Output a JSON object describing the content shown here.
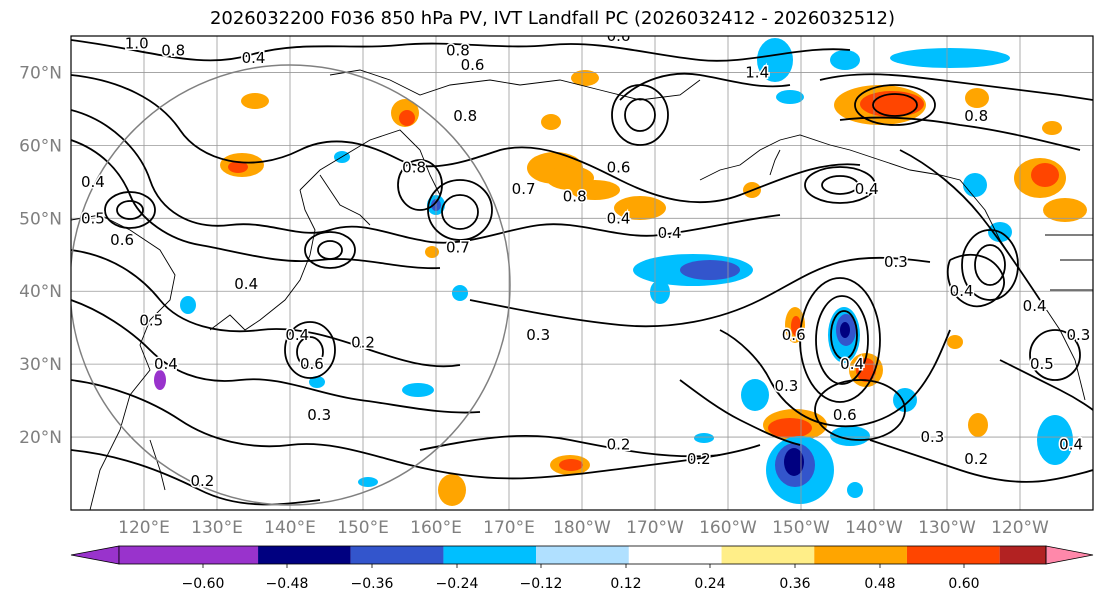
{
  "title": "2026032200 F036 850 hPa PV, IVT Landfall PC (2026032412 - 2026032512)",
  "lat_labels": [
    {
      "lat": 70,
      "label": "70°N"
    },
    {
      "lat": 60,
      "label": "60°N"
    },
    {
      "lat": 50,
      "label": "50°N"
    },
    {
      "lat": 40,
      "label": "40°N"
    },
    {
      "lat": 30,
      "label": "30°N"
    },
    {
      "lat": 20,
      "label": "20°N"
    }
  ],
  "lon_labels": [
    {
      "lon": 120,
      "label": "120°E"
    },
    {
      "lon": 130,
      "label": "130°E"
    },
    {
      "lon": 140,
      "label": "140°E"
    },
    {
      "lon": 150,
      "label": "150°E"
    },
    {
      "lon": 160,
      "label": "160°E"
    },
    {
      "lon": 170,
      "label": "170°E"
    },
    {
      "lon": 180,
      "label": "180°W"
    },
    {
      "lon": 190,
      "label": "170°W"
    },
    {
      "lon": 200,
      "label": "160°W"
    },
    {
      "lon": 210,
      "label": "150°W"
    },
    {
      "lon": 220,
      "label": "140°W"
    },
    {
      "lon": 230,
      "label": "130°W"
    },
    {
      "lon": 240,
      "label": "120°W"
    }
  ],
  "map_extent": {
    "lon_min": 110,
    "lon_max": 250,
    "lat_min": 10,
    "lat_max": 75
  },
  "colorbar": {
    "colors": [
      "#9933cc",
      "#000080",
      "#3355cc",
      "#00bfff",
      "#b0e0ff",
      "#ffffff",
      "#ffee88",
      "#ffa500",
      "#ff4500",
      "#b22222",
      "#ff88aa"
    ],
    "labels": [
      "−0.60",
      "−0.48",
      "−0.36",
      "−0.24",
      "−0.12",
      "0.12",
      "0.24",
      "0.36",
      "0.48",
      "0.60"
    ]
  },
  "contour_labels": [
    {
      "text": "1.0",
      "lon": 119,
      "lat": 74
    },
    {
      "text": "0.8",
      "lon": 124,
      "lat": 73
    },
    {
      "text": "0.4",
      "lon": 135,
      "lat": 72
    },
    {
      "text": "0.8",
      "lon": 163,
      "lat": 73
    },
    {
      "text": "0.6",
      "lon": 165,
      "lat": 71
    },
    {
      "text": "0.6",
      "lon": 185,
      "lat": 75
    },
    {
      "text": "1.4",
      "lon": 204,
      "lat": 70
    },
    {
      "text": "0.8",
      "lon": 164,
      "lat": 64
    },
    {
      "text": "0.8",
      "lon": 157,
      "lat": 57
    },
    {
      "text": "0.7",
      "lon": 172,
      "lat": 54
    },
    {
      "text": "0.8",
      "lon": 179,
      "lat": 53
    },
    {
      "text": "0.6",
      "lon": 185,
      "lat": 57
    },
    {
      "text": "0.4",
      "lon": 192,
      "lat": 48
    },
    {
      "text": "0.4",
      "lon": 185,
      "lat": 50
    },
    {
      "text": "0.7",
      "lon": 163,
      "lat": 46
    },
    {
      "text": "0.8",
      "lon": 234,
      "lat": 64
    },
    {
      "text": "0.4",
      "lon": 219,
      "lat": 54
    },
    {
      "text": "0.4",
      "lon": 113,
      "lat": 55
    },
    {
      "text": "0.6",
      "lon": 117,
      "lat": 47
    },
    {
      "text": "0.5",
      "lon": 113,
      "lat": 50
    },
    {
      "text": "0.3",
      "lon": 223,
      "lat": 44
    },
    {
      "text": "0.4",
      "lon": 232,
      "lat": 40
    },
    {
      "text": "0.4",
      "lon": 242,
      "lat": 38
    },
    {
      "text": "0.3",
      "lon": 248,
      "lat": 34
    },
    {
      "text": "0.5",
      "lon": 243,
      "lat": 30
    },
    {
      "text": "0.4",
      "lon": 134,
      "lat": 41
    },
    {
      "text": "0.4",
      "lon": 141,
      "lat": 34
    },
    {
      "text": "0.2",
      "lon": 150,
      "lat": 33
    },
    {
      "text": "0.5",
      "lon": 121,
      "lat": 36
    },
    {
      "text": "0.4",
      "lon": 123,
      "lat": 30
    },
    {
      "text": "0.6",
      "lon": 143,
      "lat": 30
    },
    {
      "text": "0.3",
      "lon": 174,
      "lat": 34
    },
    {
      "text": "0.3",
      "lon": 144,
      "lat": 23
    },
    {
      "text": "0.2",
      "lon": 185,
      "lat": 19
    },
    {
      "text": "0.2",
      "lon": 196,
      "lat": 17
    },
    {
      "text": "0.2",
      "lon": 128,
      "lat": 14
    },
    {
      "text": "0.6",
      "lon": 209,
      "lat": 34
    },
    {
      "text": "0.4",
      "lon": 217,
      "lat": 30
    },
    {
      "text": "0.3",
      "lon": 208,
      "lat": 27
    },
    {
      "text": "0.6",
      "lon": 216,
      "lat": 23
    },
    {
      "text": "0.3",
      "lon": 228,
      "lat": 20
    },
    {
      "text": "0.2",
      "lon": 234,
      "lat": 17
    },
    {
      "text": "0.4",
      "lon": 247,
      "lat": 19
    }
  ]
}
